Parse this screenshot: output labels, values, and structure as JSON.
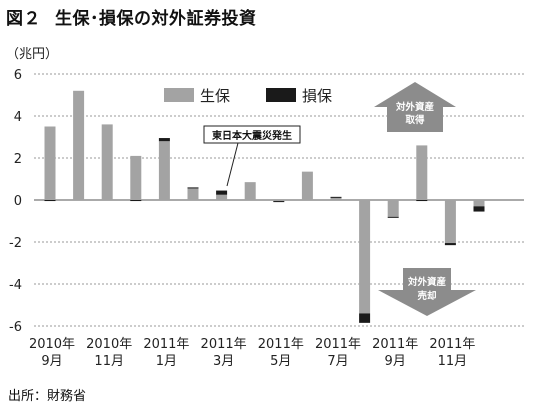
{
  "figure": {
    "number": "図２",
    "title": "生保･損保の対外証券投資",
    "source": "出所：財務省"
  },
  "chart_data": {
    "type": "bar",
    "stacked": true,
    "unit_label": "（兆円）",
    "ylim": [
      -6,
      6
    ],
    "yticks": [
      6,
      4,
      2,
      0,
      -2,
      -4,
      -6
    ],
    "grid": true,
    "legend_position": "top-center",
    "x_tick_labels": [
      {
        "line1": "2010年",
        "line2": "9月",
        "month_index": 0
      },
      {
        "line1": "2010年",
        "line2": "11月",
        "month_index": 2
      },
      {
        "line1": "2011年",
        "line2": "1月",
        "month_index": 4
      },
      {
        "line1": "2011年",
        "line2": "3月",
        "month_index": 6
      },
      {
        "line1": "2011年",
        "line2": "5月",
        "month_index": 8
      },
      {
        "line1": "2011年",
        "line2": "7月",
        "month_index": 10
      },
      {
        "line1": "2011年",
        "line2": "9月",
        "month_index": 12
      },
      {
        "line1": "2011年",
        "line2": "11月",
        "month_index": 14
      }
    ],
    "categories": [
      "2010-09",
      "2010-10",
      "2010-11",
      "2010-12",
      "2011-01",
      "2011-02",
      "2011-03",
      "2011-04",
      "2011-05",
      "2011-06",
      "2011-07",
      "2011-08",
      "2011-09",
      "2011-10",
      "2011-11",
      "2011-12"
    ],
    "series": [
      {
        "name": "生保",
        "color": "#a3a3a3",
        "values": [
          3.5,
          5.2,
          3.6,
          2.1,
          2.8,
          0.55,
          0.25,
          0.85,
          -0.05,
          1.35,
          0.1,
          -5.4,
          -0.8,
          2.6,
          -2.05,
          -0.3
        ]
      },
      {
        "name": "損保",
        "color": "#1a1a1a",
        "values": [
          -0.05,
          0.0,
          0.0,
          -0.05,
          0.15,
          0.05,
          0.2,
          0.0,
          -0.05,
          0.0,
          0.05,
          -0.45,
          -0.05,
          -0.05,
          -0.1,
          -0.25
        ]
      }
    ],
    "annotations": {
      "earthquake": {
        "text": "東日本大震災発生",
        "month_index": 6
      },
      "acquire": {
        "line1": "対外資産",
        "line2": "取得"
      },
      "sell": {
        "line1": "対外資産",
        "line2": "売却"
      }
    }
  }
}
